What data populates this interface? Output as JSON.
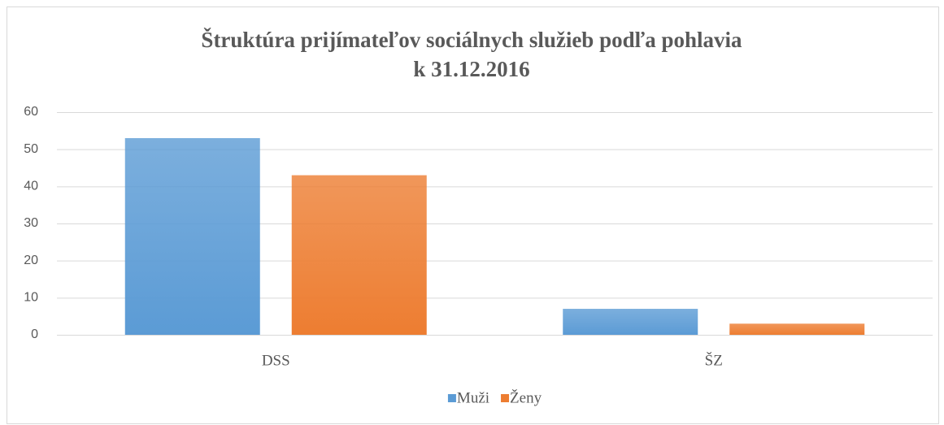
{
  "chart_data": {
    "type": "bar",
    "title": "Štruktúra prijímateľov sociálnych služieb podľa pohlavia",
    "subtitle": "k 31.12.2016",
    "categories": [
      "DSS",
      "ŠZ"
    ],
    "series": [
      {
        "name": "Muži",
        "color": "#5b9bd5",
        "values": [
          53,
          7
        ]
      },
      {
        "name": "Ženy",
        "color": "#ed7d31",
        "values": [
          43,
          3
        ]
      }
    ],
    "ylim": [
      0,
      60
    ],
    "yticks": [
      0,
      10,
      20,
      30,
      40,
      50,
      60
    ],
    "grid": true,
    "legend": "bottom"
  }
}
